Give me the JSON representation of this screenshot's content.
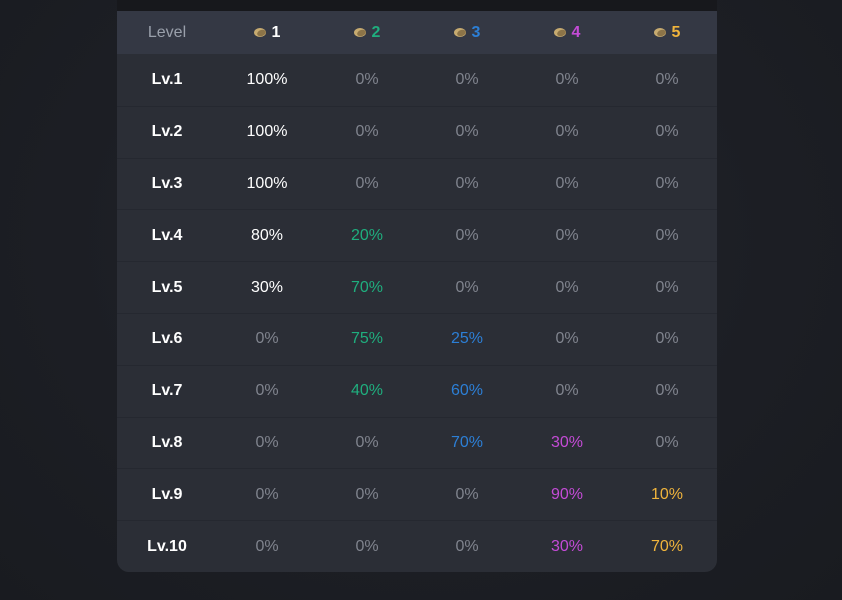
{
  "table": {
    "level_header": "Level",
    "rarities": [
      {
        "label": "1",
        "color": "#ffffff",
        "icon": "coin-icon"
      },
      {
        "label": "2",
        "color": "#1fae7e",
        "icon": "coin-icon"
      },
      {
        "label": "3",
        "color": "#2c7fd6",
        "icon": "coin-icon"
      },
      {
        "label": "4",
        "color": "#c44bd6",
        "icon": "coin-icon"
      },
      {
        "label": "5",
        "color": "#f0b43c",
        "icon": "coin-icon"
      }
    ],
    "rows": [
      {
        "level": "Lv.1",
        "values": [
          "100%",
          "0%",
          "0%",
          "0%",
          "0%"
        ]
      },
      {
        "level": "Lv.2",
        "values": [
          "100%",
          "0%",
          "0%",
          "0%",
          "0%"
        ]
      },
      {
        "level": "Lv.3",
        "values": [
          "100%",
          "0%",
          "0%",
          "0%",
          "0%"
        ]
      },
      {
        "level": "Lv.4",
        "values": [
          "80%",
          "20%",
          "0%",
          "0%",
          "0%"
        ]
      },
      {
        "level": "Lv.5",
        "values": [
          "30%",
          "70%",
          "0%",
          "0%",
          "0%"
        ]
      },
      {
        "level": "Lv.6",
        "values": [
          "0%",
          "75%",
          "25%",
          "0%",
          "0%"
        ]
      },
      {
        "level": "Lv.7",
        "values": [
          "0%",
          "40%",
          "60%",
          "0%",
          "0%"
        ]
      },
      {
        "level": "Lv.8",
        "values": [
          "0%",
          "0%",
          "70%",
          "30%",
          "0%"
        ]
      },
      {
        "level": "Lv.9",
        "values": [
          "0%",
          "0%",
          "0%",
          "90%",
          "10%"
        ]
      },
      {
        "level": "Lv.10",
        "values": [
          "0%",
          "0%",
          "0%",
          "30%",
          "70%"
        ]
      }
    ],
    "zero_color": "#80848e"
  }
}
